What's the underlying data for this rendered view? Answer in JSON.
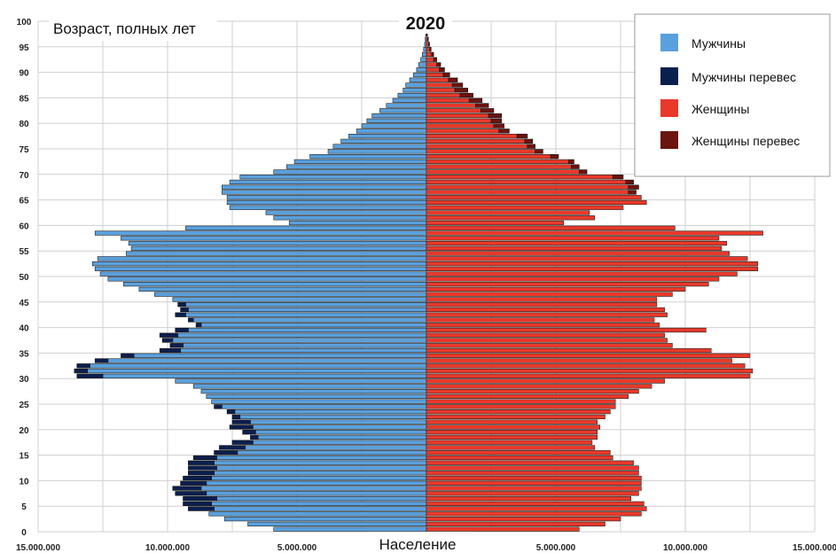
{
  "chart_data": {
    "type": "bar",
    "title": "2020",
    "ylabel": "Возраст, полных лет",
    "xlabel": "Население",
    "orientation": "horizontal-pyramid",
    "age_range": [
      0,
      100
    ],
    "y_ticks": [
      "0",
      "5",
      "10",
      "15",
      "20",
      "25",
      "30",
      "35",
      "40",
      "45",
      "50",
      "55",
      "60",
      "65",
      "70",
      "75",
      "80",
      "85",
      "90",
      "95",
      "100"
    ],
    "x_ticks": [
      "15.000.000",
      "10.000.000",
      "5.000.000",
      "",
      "5.000.000",
      "10.000.000",
      "15.000.000"
    ],
    "xlim": [
      -15000000,
      15000000
    ],
    "legend_position": "top-right",
    "grid": true,
    "colors": {
      "male": "#5aa0dc",
      "male_surplus": "#0b1f4e",
      "female": "#e8392a",
      "female_surplus": "#6b1410"
    },
    "series": [
      {
        "name": "Мужчины",
        "key": "male"
      },
      {
        "name": "Мужчины перевес",
        "key": "male_surplus"
      },
      {
        "name": "Женщины",
        "key": "female"
      },
      {
        "name": "Женщины перевес",
        "key": "female_surplus"
      }
    ],
    "ages": [
      0,
      1,
      2,
      3,
      4,
      5,
      6,
      7,
      8,
      9,
      10,
      11,
      12,
      13,
      14,
      15,
      16,
      17,
      18,
      19,
      20,
      21,
      22,
      23,
      24,
      25,
      26,
      27,
      28,
      29,
      30,
      31,
      32,
      33,
      34,
      35,
      36,
      37,
      38,
      39,
      40,
      41,
      42,
      43,
      44,
      45,
      46,
      47,
      48,
      49,
      50,
      51,
      52,
      53,
      54,
      55,
      56,
      57,
      58,
      59,
      60,
      61,
      62,
      63,
      64,
      65,
      66,
      67,
      68,
      69,
      70,
      71,
      72,
      73,
      74,
      75,
      76,
      77,
      78,
      79,
      80,
      81,
      82,
      83,
      84,
      85,
      86,
      87,
      88,
      89,
      90,
      91,
      92,
      93,
      94,
      95,
      96,
      97,
      98
    ],
    "male": [
      5900000,
      6900000,
      7800000,
      8400000,
      8200000,
      8300000,
      8100000,
      8500000,
      8700000,
      8500000,
      8300000,
      8200000,
      8100000,
      8200000,
      8100000,
      7300000,
      7000000,
      6700000,
      6500000,
      6600000,
      6700000,
      6800000,
      7200000,
      7400000,
      7900000,
      8300000,
      8500000,
      8700000,
      9000000,
      9700000,
      12500000,
      13100000,
      13000000,
      12300000,
      11300000,
      9500000,
      9400000,
      9800000,
      9600000,
      9200000,
      8700000,
      9000000,
      9300000,
      9200000,
      9300000,
      9800000,
      10500000,
      11100000,
      11700000,
      12300000,
      12600000,
      12800000,
      12900000,
      12700000,
      11600000,
      11400000,
      11500000,
      11800000,
      12800000,
      9300000,
      5300000,
      5900000,
      6200000,
      7600000,
      7700000,
      7700000,
      7900000,
      7900000,
      7600000,
      7200000,
      5900000,
      5400000,
      5100000,
      4500000,
      3800000,
      3600000,
      3300000,
      3000000,
      2700000,
      2500000,
      2300000,
      2100000,
      1800000,
      1550000,
      1300000,
      1100000,
      900000,
      800000,
      650000,
      500000,
      380000,
      300000,
      220000,
      160000,
      110000,
      70000,
      45000,
      25000,
      12000
    ],
    "male_surplus": [
      0,
      0,
      0,
      0,
      1000000,
      1100000,
      1300000,
      1200000,
      1100000,
      1000000,
      1100000,
      1000000,
      1100000,
      1000000,
      900000,
      900000,
      1000000,
      800000,
      300000,
      500000,
      900000,
      700000,
      300000,
      300000,
      300000,
      0,
      0,
      0,
      0,
      0,
      1000000,
      500000,
      500000,
      500000,
      500000,
      800000,
      500000,
      400000,
      700000,
      500000,
      200000,
      200000,
      400000,
      300000,
      300000,
      0,
      0,
      0,
      0,
      0,
      0,
      0,
      0,
      0,
      0,
      0,
      0,
      0,
      0,
      0,
      0,
      0,
      0,
      0,
      0,
      0,
      0,
      0,
      0,
      0,
      0,
      0,
      0,
      0,
      0,
      0,
      0,
      0,
      0,
      0,
      0,
      0,
      0,
      0,
      0,
      0,
      0,
      0,
      0,
      0,
      0,
      0,
      0,
      0,
      0,
      0,
      0,
      0,
      0
    ],
    "female": [
      5900000,
      6900000,
      7500000,
      8300000,
      8500000,
      8400000,
      7900000,
      8200000,
      8300000,
      8300000,
      8300000,
      8200000,
      8200000,
      8000000,
      7200000,
      7100000,
      6500000,
      6400000,
      6600000,
      6600000,
      6700000,
      6600000,
      6900000,
      7100000,
      7300000,
      7300000,
      7800000,
      8200000,
      8700000,
      9200000,
      12500000,
      12600000,
      12300000,
      11800000,
      12500000,
      11000000,
      9500000,
      9300000,
      9200000,
      10800000,
      9000000,
      8800000,
      9300000,
      9200000,
      8900000,
      8900000,
      9500000,
      10000000,
      10900000,
      11300000,
      12000000,
      12800000,
      12800000,
      12400000,
      11700000,
      11400000,
      11600000,
      11300000,
      13000000,
      9600000,
      5300000,
      6500000,
      6300000,
      7600000,
      8500000,
      8300000,
      7800000,
      7800000,
      7700000,
      7200000,
      5900000,
      5600000,
      5500000,
      4800000,
      4200000,
      3900000,
      3800000,
      3500000,
      2800000,
      2600000,
      2500000,
      2400000,
      2100000,
      1900000,
      1650000,
      1300000,
      1100000,
      1000000,
      850000,
      650000,
      500000,
      400000,
      280000,
      200000,
      130000,
      90000,
      55000,
      30000,
      15000
    ],
    "female_surplus": [
      0,
      0,
      0,
      0,
      0,
      0,
      0,
      0,
      0,
      0,
      0,
      0,
      0,
      0,
      0,
      0,
      0,
      0,
      0,
      0,
      0,
      0,
      0,
      0,
      0,
      0,
      0,
      0,
      0,
      0,
      0,
      0,
      0,
      0,
      0,
      0,
      0,
      0,
      0,
      0,
      0,
      0,
      0,
      0,
      0,
      0,
      0,
      0,
      0,
      0,
      0,
      0,
      0,
      0,
      0,
      0,
      0,
      0,
      0,
      0,
      0,
      0,
      0,
      0,
      0,
      0,
      300000,
      400000,
      300000,
      400000,
      300000,
      300000,
      200000,
      300000,
      300000,
      300000,
      300000,
      400000,
      400000,
      400000,
      400000,
      500000,
      500000,
      500000,
      500000,
      500000,
      500000,
      400000,
      350000,
      250000,
      200000,
      150000,
      120000,
      80000,
      50000,
      30000,
      20000,
      10000,
      5000
    ]
  }
}
